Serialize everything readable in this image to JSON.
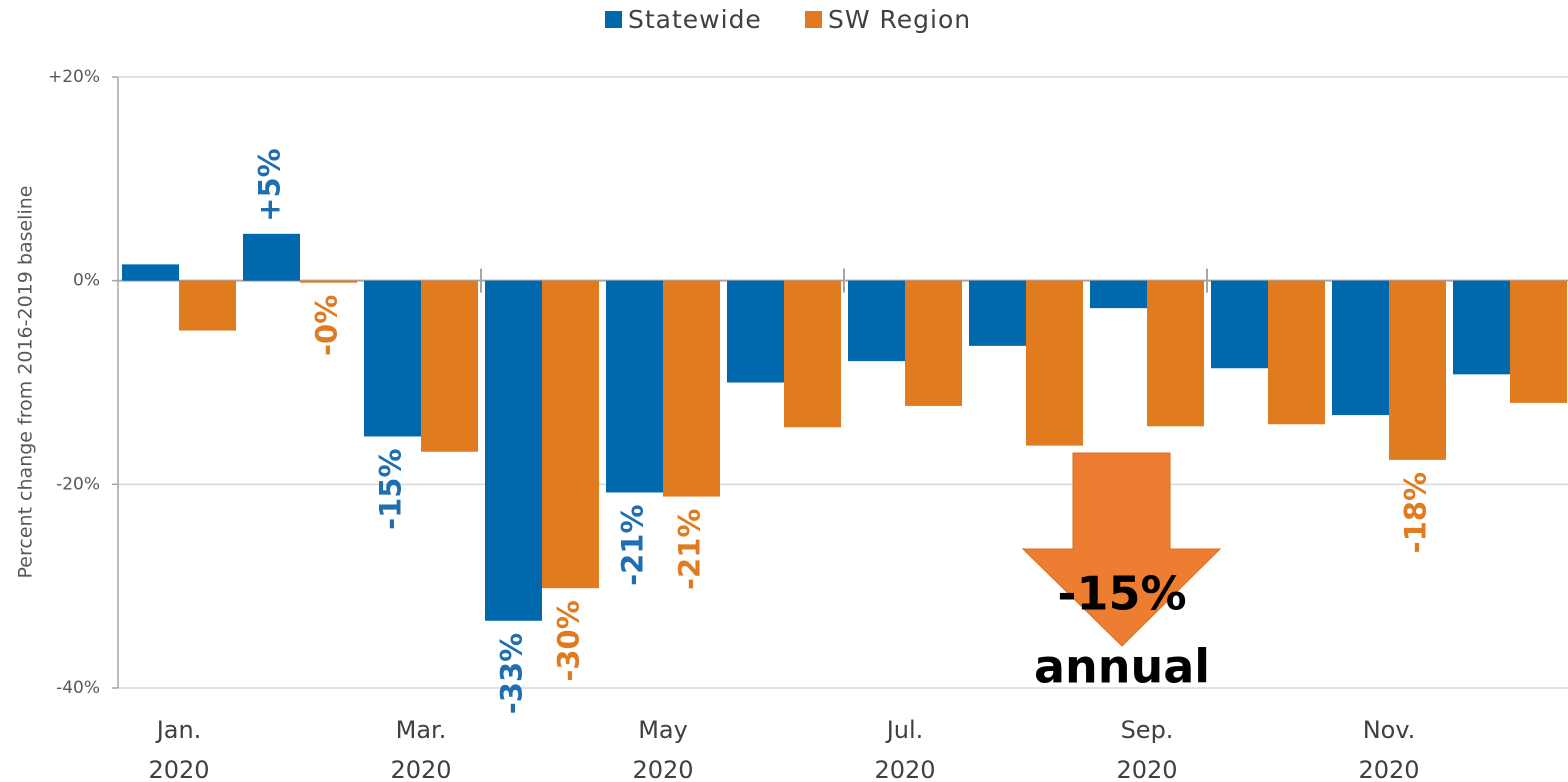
{
  "chart_data": {
    "type": "bar",
    "y_label": "Percent change from 2016-2019 baseline",
    "categories": [
      "Jan. 2020",
      null,
      "Mar. 2020",
      null,
      "May 2020",
      null,
      "Jul. 2020",
      null,
      "Sep. 2020",
      null,
      "Nov. 2020",
      null
    ],
    "series": [
      {
        "name": "Statewide",
        "color": "#0068ad",
        "label_color": "#1f6fb0",
        "values": [
          1.6,
          4.6,
          -15.3,
          -33.4,
          -20.8,
          -10.0,
          -7.9,
          -6.4,
          -2.7,
          -8.6,
          -13.2,
          -9.2
        ],
        "value_labels": [
          null,
          "+5%",
          "-15%",
          "-33%",
          "-21%",
          null,
          null,
          null,
          null,
          null,
          null,
          null
        ]
      },
      {
        "name": "SW Region",
        "color": "#e07b20",
        "label_color": "#e07b20",
        "values": [
          -4.9,
          -0.2,
          -16.8,
          -30.2,
          -21.2,
          -14.4,
          -12.3,
          -16.2,
          -14.3,
          -14.1,
          -17.6,
          -12.0
        ],
        "value_labels": [
          null,
          "-0%",
          null,
          "-30%",
          "-21%",
          null,
          null,
          null,
          null,
          null,
          "-18%",
          null
        ]
      }
    ],
    "ylim": [
      -40,
      20
    ],
    "yticks": [
      {
        "value": 20,
        "label": "+20%"
      },
      {
        "value": 0,
        "label": "0%"
      },
      {
        "value": -20,
        "label": "-20%"
      },
      {
        "value": -40,
        "label": "-40%"
      }
    ],
    "grid": true,
    "legend": "top",
    "annotation": {
      "lines": [
        "-15%",
        "annual"
      ],
      "color": "#ed7d31"
    }
  }
}
